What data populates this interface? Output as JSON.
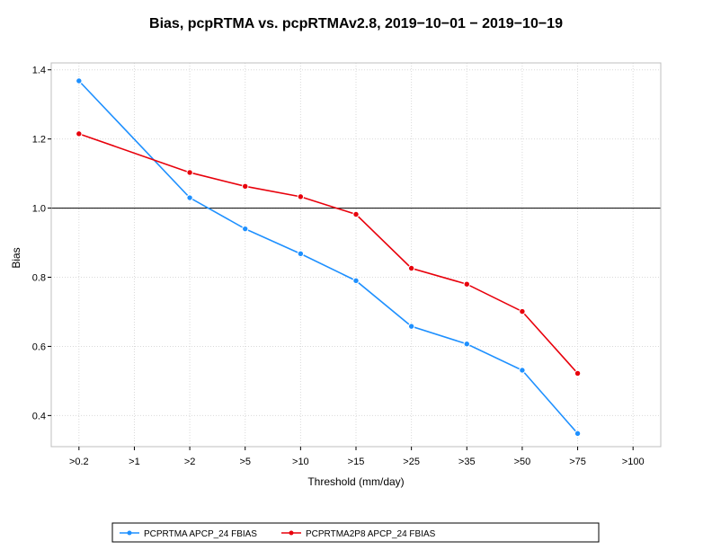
{
  "chart_data": {
    "type": "line",
    "title": "Bias, pcpRTMA vs. pcpRTMAv2.8, 2019−10−01 − 2019−10−19",
    "xlabel": "Threshold (mm/day)",
    "ylabel": "Bias",
    "categories": [
      ">0.2",
      ">1",
      ">2",
      ">5",
      ">10",
      ">15",
      ">25",
      ">35",
      ">50",
      ">75",
      ">100"
    ],
    "ylim": [
      0.31,
      1.42
    ],
    "yticks": [
      0.4,
      0.6,
      0.8,
      1.0,
      1.2,
      1.4
    ],
    "ytick_labels": [
      "0.4",
      "0.6",
      "0.8",
      "1.0",
      "1.2",
      "1.4"
    ],
    "reference_line": 1.0,
    "grid": true,
    "legend_position": "bottom",
    "series": [
      {
        "name": "PCPRTMA APCP_24 FBIAS",
        "color": "#1e90ff",
        "values": [
          1.368,
          null,
          1.03,
          0.94,
          0.868,
          0.79,
          0.658,
          0.607,
          0.531,
          0.348,
          null
        ]
      },
      {
        "name": "PCPRTMA2P8 APCP_24 FBIAS",
        "color": "#e8000b",
        "values": [
          1.215,
          null,
          1.103,
          1.063,
          1.033,
          0.982,
          0.826,
          0.78,
          0.701,
          0.522,
          null
        ]
      }
    ]
  }
}
